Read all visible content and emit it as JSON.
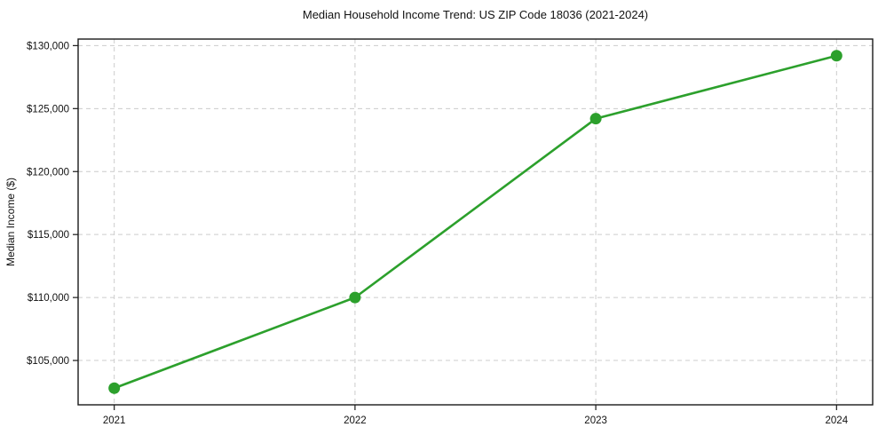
{
  "chart_data": {
    "type": "line",
    "title": "Median Household Income Trend: US ZIP Code 18036 (2021-2024)",
    "xlabel": "",
    "ylabel": "Median Income ($)",
    "x": [
      2021,
      2022,
      2023,
      2024
    ],
    "categories": [
      "2021",
      "2022",
      "2023",
      "2024"
    ],
    "series": [
      {
        "name": "Median Income",
        "values": [
          102800,
          110000,
          124200,
          129200
        ]
      }
    ],
    "xticks": {
      "values": [
        2021,
        2022,
        2023,
        2024
      ],
      "labels": [
        "2021",
        "2022",
        "2023",
        "2024"
      ]
    },
    "yticks": {
      "values": [
        105000,
        110000,
        115000,
        120000,
        125000,
        130000
      ],
      "labels": [
        "$105,000",
        "$110,000",
        "$115,000",
        "$120,000",
        "$125,000",
        "$130,000"
      ]
    },
    "xlim": [
      2020.85,
      2024.15
    ],
    "ylim": [
      101480,
      130520
    ],
    "grid": "dashed",
    "legend": "none",
    "colors": {
      "line": "#2ca02c",
      "marker": "#2ca02c",
      "grid": "#cccccc",
      "spine": "#1a1a1a",
      "text": "#111111",
      "background": "#ffffff"
    }
  }
}
